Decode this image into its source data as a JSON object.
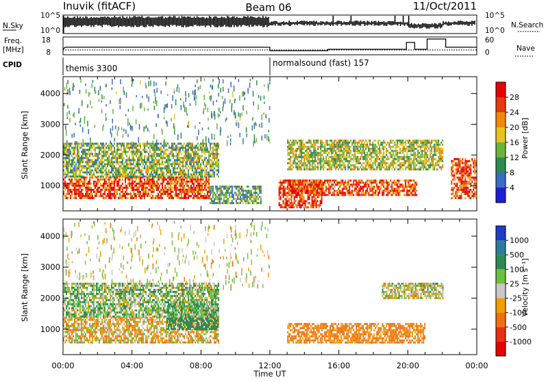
{
  "header": {
    "station": "Inuvik (fitACF)",
    "beam": "Beam 06",
    "date": "11/Oct/2011"
  },
  "top_panels": {
    "nsky_label": "N.Sky",
    "nsky_ticks": [
      "10^5",
      "10^0"
    ],
    "nsearch_label": "N.Search",
    "nsearch_ticks": [
      "10^5",
      "10^0"
    ],
    "freq_label_1": "Freq.",
    "freq_label_2": "[MHz]",
    "freq_ticks": [
      "18",
      "8"
    ],
    "nave_label": "Nave",
    "nave_ticks": [
      "60",
      "0"
    ],
    "cpid_label": "CPID",
    "cpid_modes": [
      {
        "name": "themis 3300",
        "start_hour": 0
      },
      {
        "name": "normalsound (fast) 157",
        "start_hour": 12
      }
    ]
  },
  "chart_data": [
    {
      "type": "heatmap",
      "panel": "power",
      "ylabel": "Slant Range [km]",
      "xlabel": "",
      "x_range_hours": [
        0,
        24
      ],
      "y_range_km": [
        180,
        4550
      ],
      "y_ticks": [
        1000,
        2000,
        3000,
        4000
      ],
      "colorbar": {
        "label": "Power [dB]",
        "ticks": [
          4,
          8,
          12,
          16,
          20,
          24,
          28
        ],
        "colors": [
          "#1e1ed8",
          "#3a6cc6",
          "#2f8a52",
          "#6ab43e",
          "#e6c41e",
          "#f08a0a",
          "#e63a10",
          "#e60000"
        ]
      },
      "regions": [
        {
          "t0": 0.0,
          "t1": 8.5,
          "r0": 600,
          "r1": 1300,
          "level": 26
        },
        {
          "t0": 8.5,
          "t1": 11.5,
          "r0": 400,
          "r1": 1000,
          "level": 12
        },
        {
          "t0": 12.5,
          "t1": 15.0,
          "r0": 300,
          "r1": 1200,
          "level": 28
        },
        {
          "t0": 13.0,
          "t1": 20.5,
          "r0": 700,
          "r1": 1200,
          "level": 26
        },
        {
          "t0": 22.5,
          "t1": 24.0,
          "r0": 600,
          "r1": 1900,
          "level": 26
        },
        {
          "t0": 0.0,
          "t1": 9.0,
          "r0": 1300,
          "r1": 2400,
          "level": 14
        },
        {
          "t0": 13.0,
          "t1": 22.0,
          "r0": 1500,
          "r1": 2500,
          "level": 16
        }
      ]
    },
    {
      "type": "heatmap",
      "panel": "velocity",
      "ylabel": "Slant Range [km]",
      "xlabel": "Time UT",
      "x_range_hours": [
        0,
        24
      ],
      "x_ticks": [
        "00:00",
        "04:00",
        "08:00",
        "12:00",
        "16:00",
        "20:00",
        "00:00"
      ],
      "y_range_km": [
        180,
        4550
      ],
      "y_ticks": [
        1000,
        2000,
        3000,
        4000
      ],
      "colorbar": {
        "label": "Velocity [m s⁻¹]",
        "ticks": [
          1000,
          500,
          100,
          25,
          -25,
          -100,
          -500,
          -1000
        ],
        "colors": [
          "#1e3cc8",
          "#2f7a9e",
          "#2e8a52",
          "#6cc040",
          "#c8c8c8",
          "#f0a000",
          "#f07010",
          "#e63010",
          "#e60000"
        ]
      },
      "regions": [
        {
          "t0": 0.0,
          "t1": 9.0,
          "r0": 600,
          "r1": 1400,
          "level": -50
        },
        {
          "t0": 6.0,
          "t1": 9.0,
          "r0": 1000,
          "r1": 1900,
          "level": 300
        },
        {
          "t0": 13.0,
          "t1": 21.0,
          "r0": 600,
          "r1": 1200,
          "level": -150
        },
        {
          "t0": 18.5,
          "t1": 22.0,
          "r0": 2000,
          "r1": 2500,
          "level": 0
        },
        {
          "t0": 0.0,
          "t1": 9.0,
          "r0": 1400,
          "r1": 2500,
          "level": 60
        }
      ]
    }
  ]
}
